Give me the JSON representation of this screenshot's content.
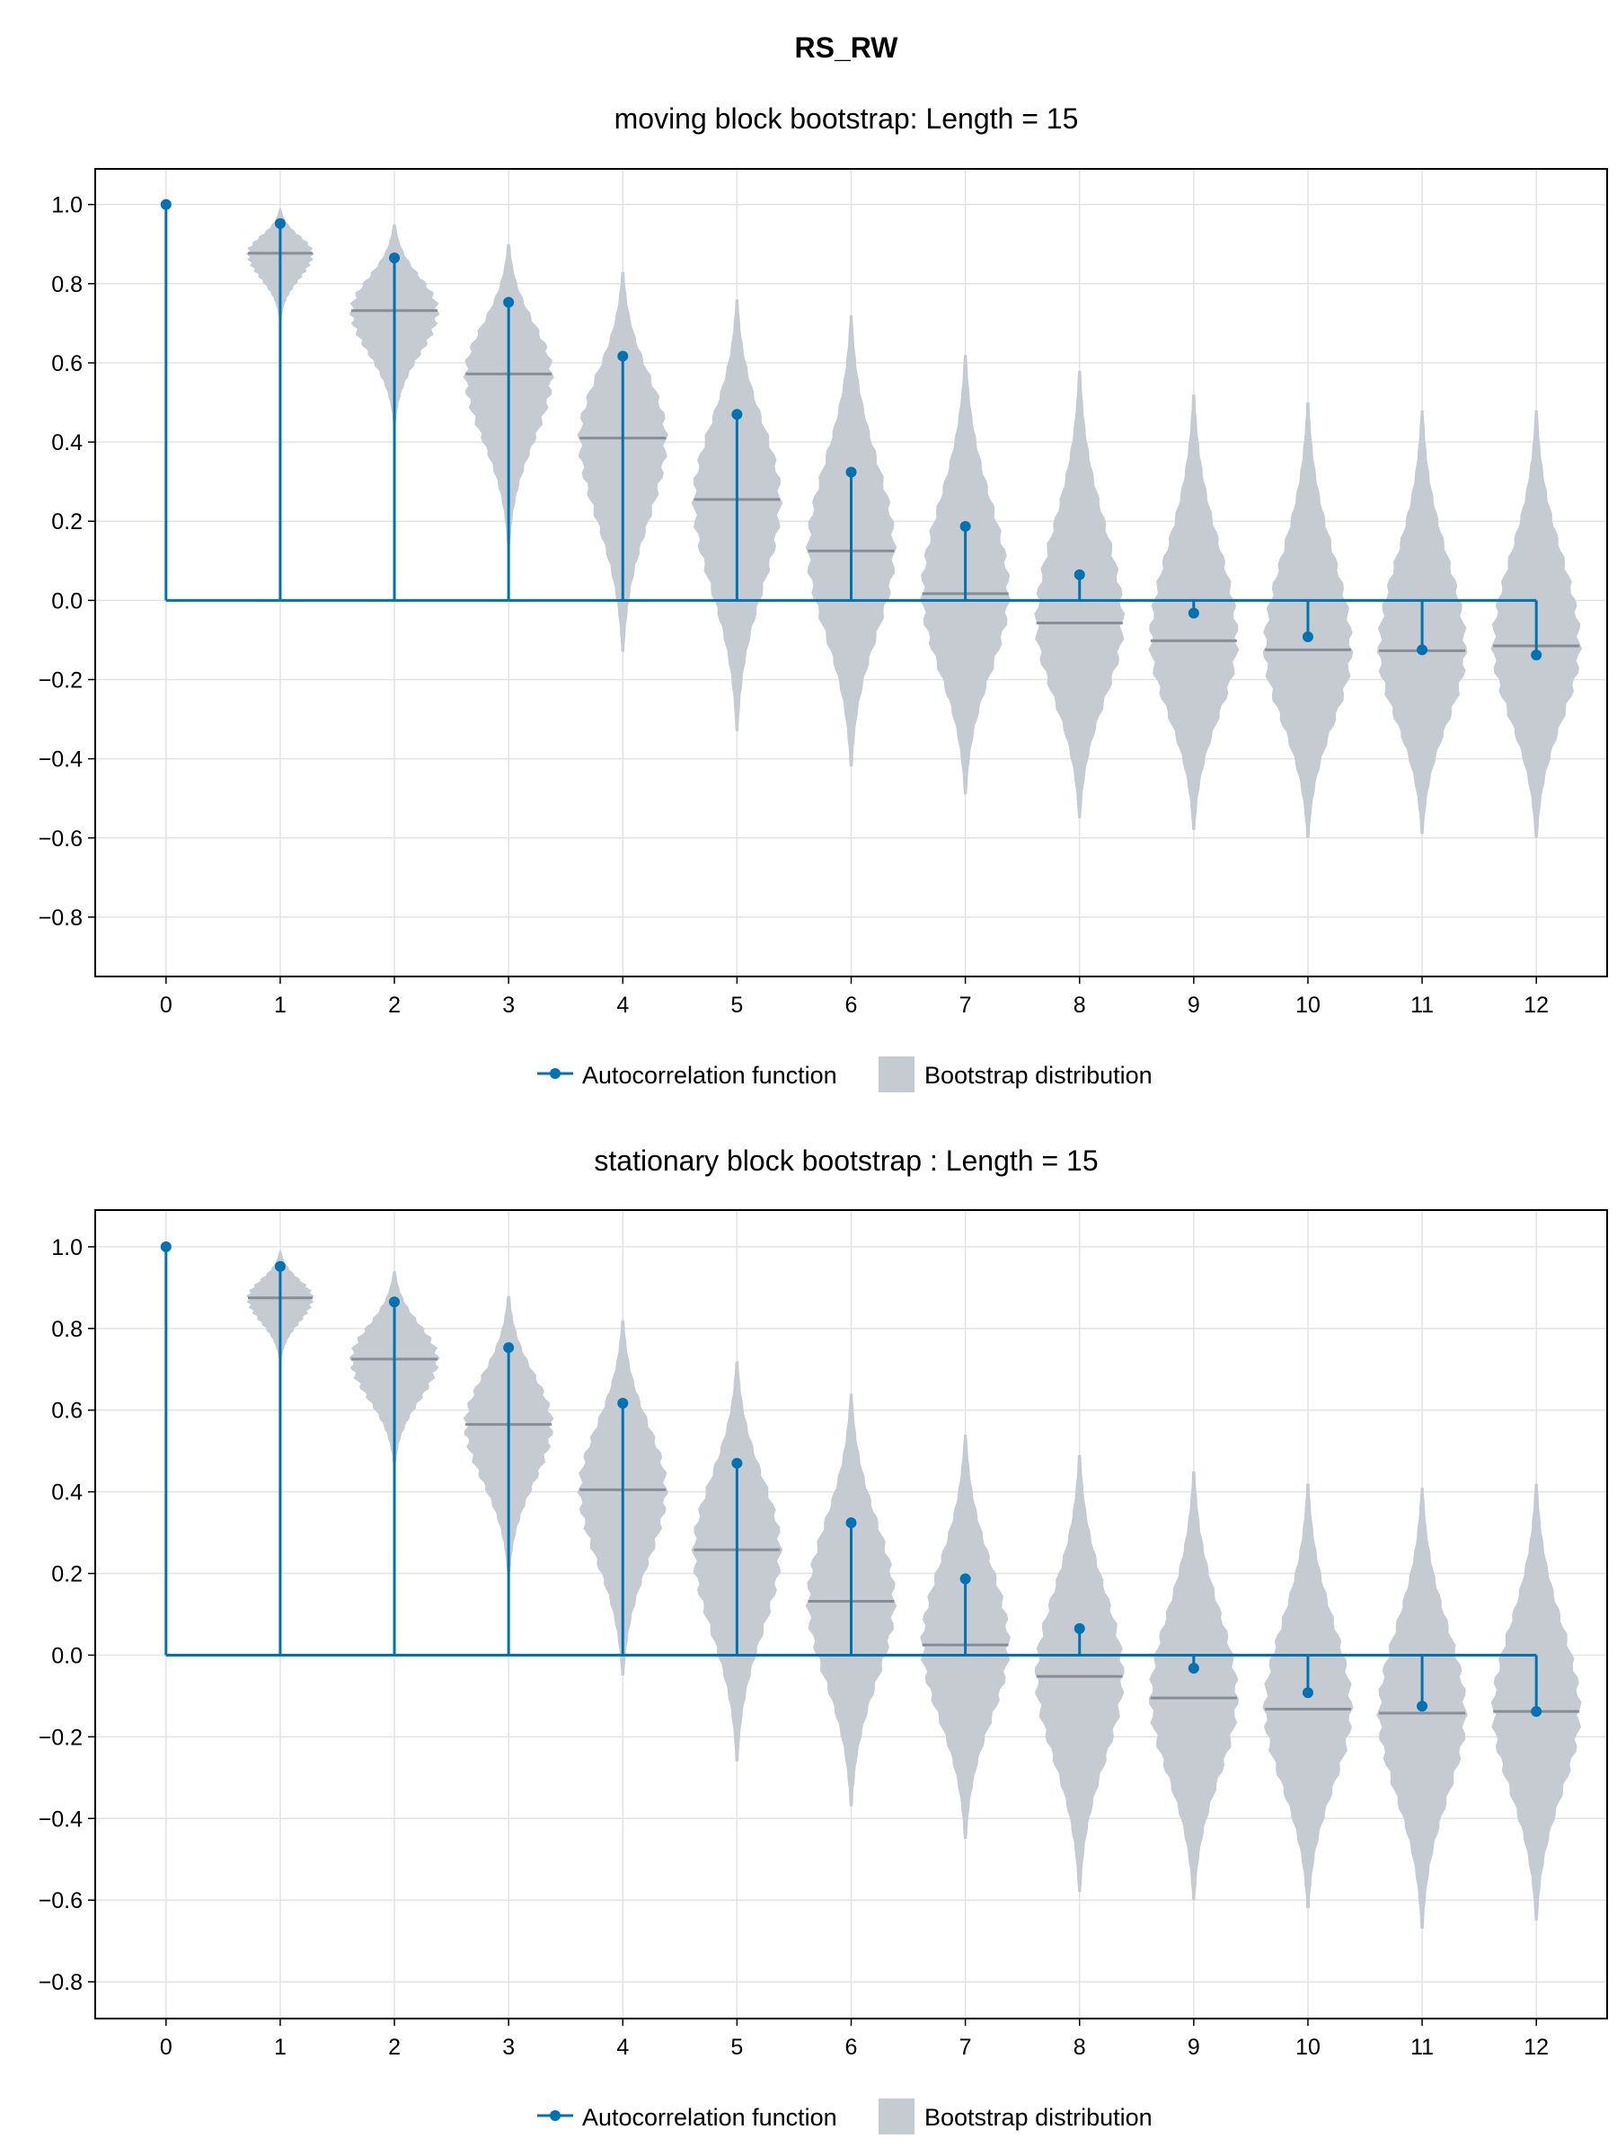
{
  "figure": {
    "title": "RS_RW"
  },
  "colors": {
    "acf": "#0072b2",
    "violin": "#c5cbd1",
    "median": "#888e96",
    "grid": "#e3e3e3",
    "axis": "#000000"
  },
  "legend": {
    "acf_label": "Autocorrelation function",
    "bootstrap_label": "Bootstrap distribution"
  },
  "chart_data": [
    {
      "type": "violin+stem",
      "title": "moving block bootstrap: Length = 15",
      "xlabel": "",
      "ylabel": "",
      "ylim": [
        -0.95,
        1.09
      ],
      "yticks": [
        -0.8,
        -0.6,
        -0.4,
        -0.2,
        0.0,
        0.2,
        0.4,
        0.6,
        0.8,
        1.0
      ],
      "ytick_labels": [
        "−0.8",
        "−0.6",
        "−0.4",
        "−0.2",
        "0.0",
        "0.2",
        "0.4",
        "0.6",
        "0.8",
        "1.0"
      ],
      "xticks": [
        0,
        1,
        2,
        3,
        4,
        5,
        6,
        7,
        8,
        9,
        10,
        11,
        12
      ],
      "xtick_labels": [
        "0",
        "1",
        "2",
        "3",
        "4",
        "5",
        "6",
        "7",
        "8",
        "9",
        "10",
        "11",
        "12"
      ],
      "xlim": [
        -0.62,
        12.62
      ],
      "grid": true,
      "legend_position": "bottom",
      "series": [
        {
          "kind": "stem",
          "lags": [
            0,
            1,
            2,
            3,
            4,
            5,
            6,
            7,
            8,
            9,
            10,
            11,
            12
          ],
          "values": [
            1.0,
            0.952,
            0.865,
            0.753,
            0.617,
            0.47,
            0.324,
            0.187,
            0.065,
            -0.032,
            -0.092,
            -0.125,
            -0.138
          ]
        },
        {
          "kind": "violin",
          "lags": [
            1,
            2,
            3,
            4,
            5,
            6,
            7,
            8,
            9,
            10,
            11,
            12
          ],
          "medians": [
            0.877,
            0.732,
            0.572,
            0.41,
            0.255,
            0.125,
            0.017,
            -0.057,
            -0.102,
            -0.125,
            -0.127,
            -0.115
          ],
          "mins": [
            0.71,
            0.45,
            0.14,
            -0.13,
            -0.33,
            -0.42,
            -0.49,
            -0.55,
            -0.58,
            -0.6,
            -0.59,
            -0.6
          ],
          "maxs": [
            0.99,
            0.95,
            0.9,
            0.83,
            0.76,
            0.72,
            0.62,
            0.58,
            0.52,
            0.5,
            0.48,
            0.48
          ]
        }
      ]
    },
    {
      "type": "violin+stem",
      "title": "stationary block bootstrap : Length = 15",
      "xlabel": "",
      "ylabel": "",
      "ylim": [
        -0.89,
        1.09
      ],
      "yticks": [
        -0.8,
        -0.6,
        -0.4,
        -0.2,
        0.0,
        0.2,
        0.4,
        0.6,
        0.8,
        1.0
      ],
      "ytick_labels": [
        "−0.8",
        "−0.6",
        "−0.4",
        "−0.2",
        "0.0",
        "0.2",
        "0.4",
        "0.6",
        "0.8",
        "1.0"
      ],
      "xticks": [
        0,
        1,
        2,
        3,
        4,
        5,
        6,
        7,
        8,
        9,
        10,
        11,
        12
      ],
      "xtick_labels": [
        "0",
        "1",
        "2",
        "3",
        "4",
        "5",
        "6",
        "7",
        "8",
        "9",
        "10",
        "11",
        "12"
      ],
      "xlim": [
        -0.62,
        12.62
      ],
      "grid": true,
      "legend_position": "bottom",
      "series": [
        {
          "kind": "stem",
          "lags": [
            0,
            1,
            2,
            3,
            4,
            5,
            6,
            7,
            8,
            9,
            10,
            11,
            12
          ],
          "values": [
            1.0,
            0.952,
            0.865,
            0.753,
            0.617,
            0.47,
            0.324,
            0.187,
            0.065,
            -0.032,
            -0.092,
            -0.125,
            -0.138
          ]
        },
        {
          "kind": "violin",
          "lags": [
            1,
            2,
            3,
            4,
            5,
            6,
            7,
            8,
            9,
            10,
            11,
            12
          ],
          "medians": [
            0.875,
            0.725,
            0.565,
            0.405,
            0.258,
            0.132,
            0.025,
            -0.052,
            -0.105,
            -0.132,
            -0.142,
            -0.138
          ],
          "mins": [
            0.72,
            0.47,
            0.2,
            -0.05,
            -0.26,
            -0.37,
            -0.45,
            -0.58,
            -0.6,
            -0.62,
            -0.67,
            -0.65
          ],
          "maxs": [
            0.99,
            0.94,
            0.88,
            0.82,
            0.72,
            0.64,
            0.54,
            0.49,
            0.45,
            0.42,
            0.41,
            0.42
          ]
        }
      ]
    }
  ]
}
